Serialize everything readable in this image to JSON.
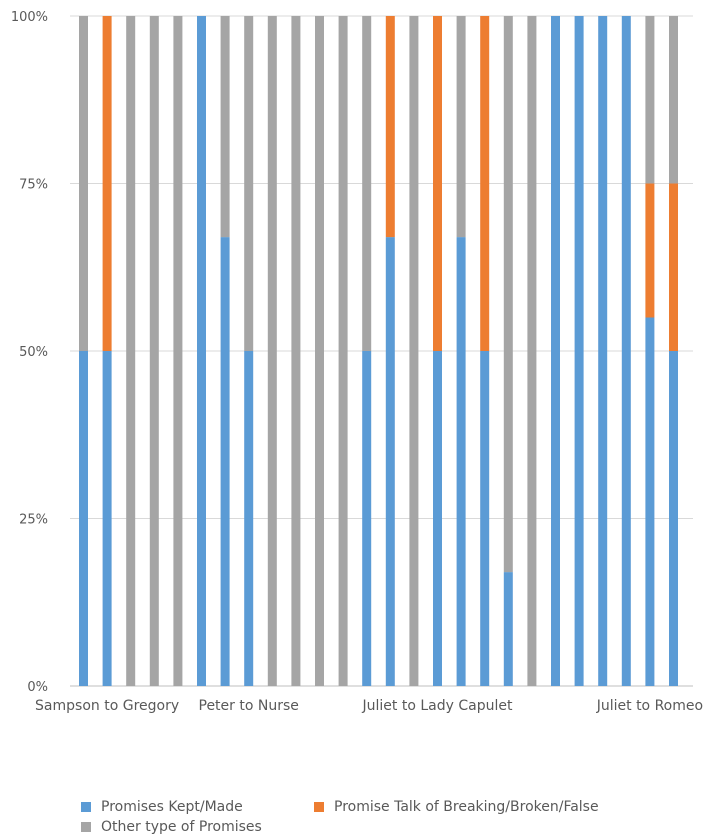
{
  "chart_data": {
    "type": "bar",
    "stacked": "percent",
    "yticks": [
      "0%",
      "25%",
      "50%",
      "75%",
      "100%"
    ],
    "ylim": [
      0,
      100
    ],
    "grid": "horizontal",
    "legend_position": "bottom",
    "category_labels": [
      {
        "label": "Sampson to Gregory",
        "index": 1
      },
      {
        "label": "Peter to Nurse",
        "index": 7
      },
      {
        "label": "Juliet to Lady Capulet",
        "index": 15
      },
      {
        "label": "Juliet to Romeo",
        "index": 24
      }
    ],
    "bar_count": 26,
    "series": [
      {
        "name": "Promises Kept/Made",
        "color": "#5b9bd5",
        "values": [
          50,
          50,
          0,
          0,
          0,
          100,
          67,
          50,
          0,
          0,
          0,
          0,
          50,
          67,
          0,
          50,
          67,
          50,
          17,
          0,
          100,
          100,
          100,
          100,
          55,
          50
        ]
      },
      {
        "name": "Promise Talk of Breaking/Broken/False",
        "color": "#ed7d31",
        "values": [
          0,
          50,
          0,
          0,
          0,
          0,
          0,
          0,
          0,
          0,
          0,
          0,
          0,
          33,
          0,
          50,
          0,
          50,
          0,
          0,
          0,
          0,
          0,
          0,
          20,
          25
        ]
      },
      {
        "name": "Other type of Promises",
        "color": "#a5a5a5",
        "values": [
          50,
          0,
          100,
          100,
          100,
          0,
          33,
          50,
          100,
          100,
          100,
          100,
          50,
          0,
          100,
          0,
          33,
          0,
          83,
          100,
          0,
          0,
          0,
          0,
          25,
          25
        ]
      }
    ]
  }
}
